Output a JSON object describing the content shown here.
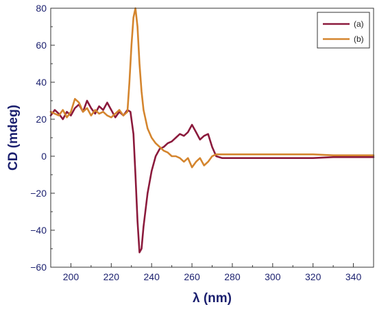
{
  "chart_data": {
    "type": "line",
    "xlabel": "λ (nm)",
    "ylabel": "CD (mdeg)",
    "xlim": [
      190,
      350
    ],
    "ylim": [
      -60,
      80
    ],
    "x_ticks": [
      200,
      220,
      240,
      260,
      280,
      300,
      320,
      340
    ],
    "y_ticks": [
      -60,
      -40,
      -20,
      0,
      20,
      40,
      60,
      80
    ],
    "grid": false,
    "legend_position": "top-right",
    "series": [
      {
        "name": "(a)",
        "color": "#8b1a3c",
        "points": [
          [
            190,
            22
          ],
          [
            192,
            25
          ],
          [
            194,
            23
          ],
          [
            196,
            20
          ],
          [
            198,
            24
          ],
          [
            200,
            22
          ],
          [
            202,
            26
          ],
          [
            204,
            28
          ],
          [
            206,
            24
          ],
          [
            208,
            30
          ],
          [
            210,
            26
          ],
          [
            212,
            23
          ],
          [
            214,
            27
          ],
          [
            216,
            25
          ],
          [
            218,
            29
          ],
          [
            220,
            25
          ],
          [
            222,
            21
          ],
          [
            224,
            24
          ],
          [
            226,
            22
          ],
          [
            228,
            25
          ],
          [
            229.5,
            24
          ],
          [
            231,
            12
          ],
          [
            232,
            -10
          ],
          [
            233,
            -35
          ],
          [
            234,
            -52
          ],
          [
            235,
            -50
          ],
          [
            236,
            -38
          ],
          [
            238,
            -20
          ],
          [
            240,
            -8
          ],
          [
            242,
            0
          ],
          [
            244,
            4
          ],
          [
            246,
            5
          ],
          [
            248,
            7
          ],
          [
            250,
            8
          ],
          [
            252,
            10
          ],
          [
            254,
            12
          ],
          [
            256,
            11
          ],
          [
            258,
            13
          ],
          [
            260,
            17
          ],
          [
            262,
            13
          ],
          [
            264,
            9
          ],
          [
            266,
            11
          ],
          [
            268,
            12
          ],
          [
            270,
            5
          ],
          [
            272,
            0
          ],
          [
            275,
            -1
          ],
          [
            280,
            -1
          ],
          [
            290,
            -1
          ],
          [
            300,
            -1
          ],
          [
            310,
            -1
          ],
          [
            320,
            -1
          ],
          [
            330,
            -0.5
          ],
          [
            340,
            -0.5
          ],
          [
            350,
            -0.5
          ]
        ]
      },
      {
        "name": "(b)",
        "color": "#d4852e",
        "points": [
          [
            190,
            24
          ],
          [
            192,
            23
          ],
          [
            194,
            22
          ],
          [
            196,
            25
          ],
          [
            198,
            21
          ],
          [
            200,
            24
          ],
          [
            202,
            31
          ],
          [
            204,
            29
          ],
          [
            206,
            24
          ],
          [
            208,
            26
          ],
          [
            210,
            22
          ],
          [
            212,
            25
          ],
          [
            214,
            23
          ],
          [
            216,
            24
          ],
          [
            218,
            22
          ],
          [
            220,
            21
          ],
          [
            222,
            23
          ],
          [
            224,
            25
          ],
          [
            226,
            22
          ],
          [
            228,
            24
          ],
          [
            229,
            40
          ],
          [
            230,
            60
          ],
          [
            231,
            75
          ],
          [
            232,
            80
          ],
          [
            233,
            70
          ],
          [
            234,
            50
          ],
          [
            235,
            35
          ],
          [
            236,
            25
          ],
          [
            238,
            15
          ],
          [
            240,
            10
          ],
          [
            242,
            7
          ],
          [
            244,
            5
          ],
          [
            246,
            3
          ],
          [
            248,
            2
          ],
          [
            250,
            0
          ],
          [
            252,
            0
          ],
          [
            254,
            -1
          ],
          [
            256,
            -3
          ],
          [
            258,
            -1
          ],
          [
            260,
            -6
          ],
          [
            262,
            -3
          ],
          [
            264,
            -1
          ],
          [
            266,
            -5
          ],
          [
            268,
            -3
          ],
          [
            270,
            0
          ],
          [
            272,
            1
          ],
          [
            275,
            1
          ],
          [
            280,
            1
          ],
          [
            290,
            1
          ],
          [
            300,
            1
          ],
          [
            310,
            1
          ],
          [
            320,
            1
          ],
          [
            330,
            0.5
          ],
          [
            340,
            0.5
          ],
          [
            350,
            0.5
          ]
        ]
      }
    ]
  }
}
